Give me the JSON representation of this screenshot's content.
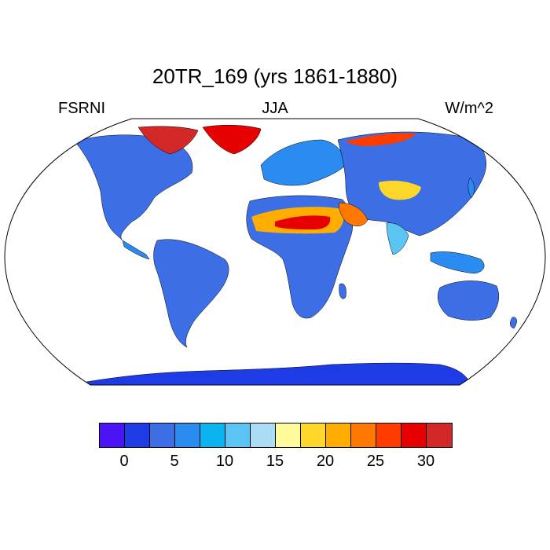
{
  "title": "20TR_169 (yrs 1861-1880)",
  "left_label": "FSRNI",
  "center_label": "JJA",
  "right_label": "W/m^2",
  "colorbar": {
    "colors": [
      "#4a14f5",
      "#1e3ce6",
      "#3c6ee6",
      "#2a8cf0",
      "#0ab4f0",
      "#5ac4f4",
      "#aadcf4",
      "#fffa9a",
      "#ffd72a",
      "#ffad00",
      "#ff7800",
      "#ff3c00",
      "#e60000",
      "#d22828"
    ],
    "tick_labels": [
      "0",
      "5",
      "10",
      "15",
      "20",
      "25",
      "30"
    ]
  },
  "colors": {
    "ocean": "#ffffff",
    "antarctica": "#1e3ce6",
    "land_low": "#3c6ee6",
    "land_mid": "#2a8cf0",
    "land_light": "#5ac4f4",
    "desert_hot": "#e60000"
  }
}
